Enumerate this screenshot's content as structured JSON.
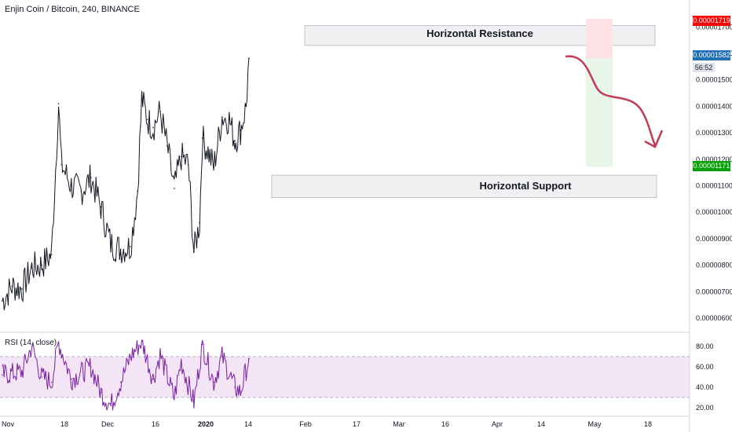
{
  "header": {
    "title": "Enjin Coin / Bitcoin, 240, BINANCE"
  },
  "rsi_panel": {
    "title": "RSI (14, close)"
  },
  "labels": {
    "target_price": "0.00001719",
    "last_price": "0.00001582",
    "countdown": "56:52",
    "stop_price": "0.00001171"
  },
  "colors": {
    "candle": "#131722",
    "rsi_line": "#7b1fa2",
    "rsi_band": "#f3e5f5",
    "zone": "#f0f0f3",
    "target_label": "#ff0000",
    "last_label": "#2370b6",
    "stop_label": "#00a000",
    "risk_box": "#fde3e6",
    "reward_box": "#e8f6ea",
    "arrow": "#c23b55"
  },
  "annotations": {
    "resistance": "Horizontal Resistance",
    "support": "Horizontal Support"
  },
  "chart_data": [
    {
      "type": "line",
      "title": "Enjin Coin / Bitcoin, 240, BINANCE",
      "ylim": [
        6e-07,
        1.719e-05
      ],
      "y_ticks": [
        "0.00000600",
        "0.00000700",
        "0.00000800",
        "0.00000900",
        "0.00001000",
        "0.00001100",
        "0.00001200",
        "0.00001300",
        "0.00001400",
        "0.00001500",
        "0.00001600",
        "0.00001700"
      ],
      "x_ticks": [
        "Nov",
        "18",
        "Dec",
        "16",
        "2020",
        "14",
        "Feb",
        "17",
        "Mar",
        "16",
        "Apr",
        "14",
        "May",
        "18"
      ],
      "zones": [
        {
          "label": "Horizontal Resistance",
          "low": 1.63e-05,
          "high": 1.705e-05
        },
        {
          "label": "Horizontal Support",
          "low": 1.055e-05,
          "high": 1.14e-05
        }
      ],
      "series": [
        {
          "dates": [
            "Oct 28",
            "Nov 4",
            "Nov 11",
            "Nov 18",
            "Nov 25",
            "Dec 2",
            "Dec 7",
            "Dec 9",
            "Dec 16",
            "Dec 23",
            "Dec 30",
            "Jan 6",
            "Jan 13",
            "Jan 20",
            "Jan 27",
            "Feb 1",
            "Feb 4",
            "Feb 8",
            "Feb 12",
            "Feb 17",
            "Feb 22",
            "Feb 27",
            "Mar 3",
            "Mar 8",
            "Mar 12",
            "Mar 16",
            "Mar 18",
            "Mar 22",
            "Mar 26",
            "Apr 1",
            "Apr 6",
            "Apr 10",
            "Apr 14",
            "Apr 18",
            "Apr 20"
          ],
          "values": [
            6.65e-06,
            7.2e-06,
            7.1e-06,
            7.9e-06,
            8e-06,
            8.4e-06,
            1.41e-05,
            1.18e-05,
            1.1e-05,
            1.08e-05,
            1.13e-05,
            1.02e-05,
            8.8e-06,
            8.6e-06,
            8.7e-06,
            1.08e-05,
            1.43e-05,
            1.35e-05,
            1.32e-05,
            1.38e-05,
            1.25e-05,
            1.09e-05,
            1.21e-05,
            1.18e-05,
            8.5e-06,
            9.6e-06,
            1.28e-05,
            1.23e-05,
            1.17e-05,
            1.36e-05,
            1.35e-05,
            1.27e-05,
            1.31e-05,
            1.4e-05,
            1.582e-05
          ]
        }
      ],
      "projection": {
        "target": 1.719e-05,
        "entry": 1.582e-05,
        "stop": 1.171e-05,
        "path_values": [
          1.582e-05,
          1.43e-05,
          1.4e-05,
          1.25e-05,
          1.3e-05
        ]
      }
    },
    {
      "type": "line",
      "title": "RSI (14, close)",
      "ylim": [
        14,
        88
      ],
      "y_ticks": [
        "20.00",
        "40.00",
        "60.00",
        "80.00"
      ],
      "band": [
        30,
        70
      ],
      "series": [
        {
          "name": "RSI",
          "dates": [
            "Oct 28",
            "Nov 11",
            "Nov 18",
            "Nov 25",
            "Dec 2",
            "Dec 7",
            "Dec 16",
            "Dec 30",
            "Jan 6",
            "Jan 13",
            "Jan 20",
            "Jan 27",
            "Feb 4",
            "Feb 12",
            "Feb 17",
            "Feb 27",
            "Mar 3",
            "Mar 12",
            "Mar 18",
            "Mar 26",
            "Apr 1",
            "Apr 10",
            "Apr 14",
            "Apr 20"
          ],
          "values": [
            52,
            55,
            80,
            50,
            45,
            84,
            48,
            60,
            35,
            22,
            45,
            70,
            85,
            48,
            72,
            30,
            65,
            25,
            82,
            45,
            70,
            40,
            35,
            68
          ]
        }
      ]
    }
  ]
}
